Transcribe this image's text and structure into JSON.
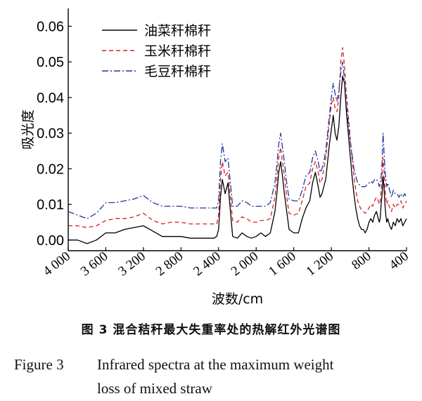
{
  "chart_data": {
    "type": "line",
    "xlabel": "波数/cm",
    "ylabel": "吸光度",
    "xlim": [
      4000,
      400
    ],
    "ylim": [
      -0.003,
      0.065
    ],
    "x_reversed": true,
    "x_ticks": [
      4000,
      3600,
      3200,
      2800,
      2400,
      2000,
      1600,
      1200,
      800,
      400
    ],
    "x_tick_labels": [
      "4 000",
      "3 600",
      "3 200",
      "2 800",
      "2 400",
      "2 000",
      "1 600",
      "1 200",
      "800",
      "400"
    ],
    "y_ticks": [
      0.0,
      0.01,
      0.02,
      0.03,
      0.04,
      0.05,
      0.06
    ],
    "y_tick_labels": [
      "0.00",
      "0.01",
      "0.02",
      "0.03",
      "0.04",
      "0.05",
      "0.06"
    ],
    "grid": false,
    "legend_position": "top-left",
    "x": [
      4000,
      3900,
      3800,
      3700,
      3600,
      3500,
      3400,
      3300,
      3200,
      3100,
      3000,
      2900,
      2800,
      2700,
      2600,
      2500,
      2450,
      2420,
      2400,
      2380,
      2360,
      2330,
      2300,
      2250,
      2200,
      2150,
      2100,
      2050,
      2000,
      1950,
      1900,
      1850,
      1800,
      1780,
      1760,
      1740,
      1720,
      1700,
      1680,
      1650,
      1600,
      1550,
      1510,
      1470,
      1430,
      1400,
      1370,
      1340,
      1320,
      1300,
      1280,
      1260,
      1240,
      1220,
      1200,
      1180,
      1160,
      1140,
      1120,
      1100,
      1080,
      1060,
      1040,
      1020,
      1000,
      980,
      960,
      940,
      920,
      900,
      880,
      860,
      840,
      820,
      800,
      780,
      760,
      740,
      720,
      700,
      690,
      680,
      670,
      660,
      650,
      640,
      630,
      620,
      610,
      600,
      580,
      560,
      540,
      520,
      500,
      480,
      460,
      440,
      420,
      400
    ],
    "series": [
      {
        "name": "油菜秆棉秆",
        "color": "#000000",
        "dash": "solid",
        "values": [
          0.0,
          0.0,
          -0.001,
          0.0,
          0.002,
          0.002,
          0.003,
          0.0035,
          0.004,
          0.0025,
          0.001,
          0.001,
          0.001,
          0.0005,
          0.0005,
          0.0005,
          0.0005,
          0.001,
          0.003,
          0.012,
          0.017,
          0.013,
          0.016,
          0.001,
          0.0005,
          0.002,
          0.001,
          0.0005,
          0.001,
          0.002,
          0.001,
          0.002,
          0.008,
          0.013,
          0.019,
          0.022,
          0.018,
          0.013,
          0.009,
          0.003,
          0.002,
          0.002,
          0.006,
          0.009,
          0.011,
          0.016,
          0.019,
          0.015,
          0.012,
          0.013,
          0.015,
          0.017,
          0.022,
          0.027,
          0.031,
          0.035,
          0.03,
          0.028,
          0.032,
          0.04,
          0.046,
          0.044,
          0.036,
          0.03,
          0.024,
          0.018,
          0.013,
          0.009,
          0.006,
          0.004,
          0.003,
          0.003,
          0.002,
          0.003,
          0.005,
          0.006,
          0.005,
          0.007,
          0.008,
          0.006,
          0.005,
          0.006,
          0.01,
          0.013,
          0.018,
          0.015,
          0.01,
          0.007,
          0.005,
          0.006,
          0.004,
          0.003,
          0.005,
          0.004,
          0.006,
          0.005,
          0.006,
          0.004,
          0.005,
          0.006
        ]
      },
      {
        "name": "玉米秆棉秆",
        "color": "#d62222",
        "dash": "6,4",
        "values": [
          0.004,
          0.004,
          0.0035,
          0.004,
          0.0055,
          0.006,
          0.006,
          0.0065,
          0.0075,
          0.0055,
          0.0045,
          0.005,
          0.005,
          0.0045,
          0.0045,
          0.0045,
          0.0045,
          0.0045,
          0.007,
          0.017,
          0.022,
          0.018,
          0.019,
          0.0055,
          0.005,
          0.0065,
          0.006,
          0.005,
          0.005,
          0.0055,
          0.0055,
          0.006,
          0.012,
          0.017,
          0.023,
          0.026,
          0.022,
          0.018,
          0.013,
          0.0075,
          0.007,
          0.0075,
          0.011,
          0.015,
          0.016,
          0.02,
          0.022,
          0.019,
          0.016,
          0.017,
          0.02,
          0.023,
          0.028,
          0.033,
          0.038,
          0.04,
          0.037,
          0.036,
          0.04,
          0.05,
          0.054,
          0.049,
          0.041,
          0.035,
          0.029,
          0.023,
          0.018,
          0.014,
          0.011,
          0.0095,
          0.0085,
          0.008,
          0.0075,
          0.008,
          0.009,
          0.01,
          0.0095,
          0.011,
          0.012,
          0.011,
          0.01,
          0.011,
          0.014,
          0.018,
          0.023,
          0.02,
          0.015,
          0.012,
          0.01,
          0.011,
          0.009,
          0.008,
          0.01,
          0.009,
          0.01,
          0.01,
          0.011,
          0.009,
          0.01,
          0.011
        ]
      },
      {
        "name": "毛豆秆棉秆",
        "color": "#2233a0",
        "dash": "9,3,2,3",
        "values": [
          0.008,
          0.007,
          0.006,
          0.0075,
          0.0105,
          0.0105,
          0.011,
          0.0115,
          0.0125,
          0.0105,
          0.0095,
          0.0095,
          0.0095,
          0.009,
          0.009,
          0.009,
          0.009,
          0.009,
          0.011,
          0.022,
          0.027,
          0.022,
          0.023,
          0.0095,
          0.0095,
          0.011,
          0.0105,
          0.0095,
          0.0095,
          0.0095,
          0.0095,
          0.0105,
          0.016,
          0.021,
          0.027,
          0.03,
          0.026,
          0.022,
          0.017,
          0.0115,
          0.011,
          0.011,
          0.014,
          0.018,
          0.019,
          0.023,
          0.025,
          0.022,
          0.019,
          0.02,
          0.022,
          0.025,
          0.03,
          0.035,
          0.04,
          0.044,
          0.041,
          0.039,
          0.042,
          0.047,
          0.05,
          0.045,
          0.038,
          0.033,
          0.028,
          0.024,
          0.02,
          0.018,
          0.016,
          0.0155,
          0.015,
          0.015,
          0.015,
          0.0155,
          0.016,
          0.0165,
          0.016,
          0.017,
          0.017,
          0.016,
          0.015,
          0.016,
          0.018,
          0.022,
          0.03,
          0.025,
          0.02,
          0.017,
          0.015,
          0.016,
          0.014,
          0.012,
          0.014,
          0.013,
          0.013,
          0.012,
          0.013,
          0.012,
          0.013,
          0.012
        ]
      }
    ]
  },
  "caption": {
    "cn": "图 3    混合秸秆最大失重率处的热解红外光谱图",
    "en_number": "Figure 3",
    "en_line1": "Infrared spectra at the maximum weight",
    "en_line2": "loss of mixed straw"
  }
}
